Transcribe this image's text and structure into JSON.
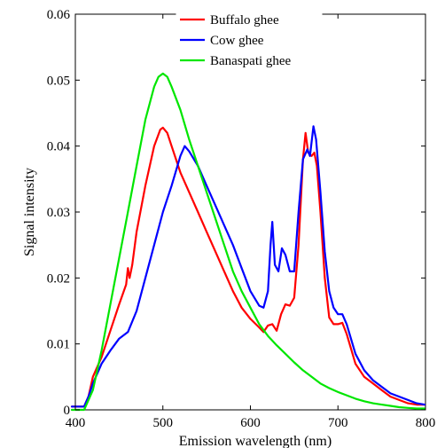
{
  "chart_data": {
    "type": "line",
    "title": "",
    "xlabel": "Emission wavelength (nm)",
    "ylabel": "Signal intensity",
    "xlim": [
      400,
      800
    ],
    "ylim": [
      0,
      0.06
    ],
    "x_ticks": [
      400,
      500,
      600,
      700,
      800
    ],
    "x_tick_labels": [
      "400",
      "500",
      "600",
      "700",
      "800"
    ],
    "y_ticks": [
      0,
      0.01,
      0.02,
      0.03,
      0.04,
      0.05,
      0.06
    ],
    "y_tick_labels": [
      "0",
      "0.01",
      "0.02",
      "0.03",
      "0.04",
      "0.05",
      "0.06"
    ],
    "grid": false,
    "legend_position": "top-right",
    "series": [
      {
        "name": "Buffalo ghee",
        "color": "#ff0000",
        "points": [
          [
            396,
            0.0005
          ],
          [
            410,
            0.0005
          ],
          [
            415,
            0.002
          ],
          [
            420,
            0.005
          ],
          [
            430,
            0.008
          ],
          [
            440,
            0.012
          ],
          [
            450,
            0.016
          ],
          [
            458,
            0.019
          ],
          [
            460,
            0.0215
          ],
          [
            462,
            0.02
          ],
          [
            465,
            0.022
          ],
          [
            470,
            0.027
          ],
          [
            480,
            0.034
          ],
          [
            490,
            0.04
          ],
          [
            497,
            0.0425
          ],
          [
            500,
            0.0428
          ],
          [
            505,
            0.042
          ],
          [
            510,
            0.04
          ],
          [
            520,
            0.036
          ],
          [
            530,
            0.033
          ],
          [
            540,
            0.03
          ],
          [
            550,
            0.027
          ],
          [
            560,
            0.024
          ],
          [
            570,
            0.021
          ],
          [
            580,
            0.018
          ],
          [
            590,
            0.0155
          ],
          [
            600,
            0.0138
          ],
          [
            610,
            0.0125
          ],
          [
            615,
            0.0118
          ],
          [
            620,
            0.0128
          ],
          [
            625,
            0.013
          ],
          [
            630,
            0.012
          ],
          [
            635,
            0.0145
          ],
          [
            640,
            0.016
          ],
          [
            645,
            0.0158
          ],
          [
            650,
            0.017
          ],
          [
            655,
            0.025
          ],
          [
            660,
            0.038
          ],
          [
            663,
            0.042
          ],
          [
            666,
            0.039
          ],
          [
            670,
            0.0385
          ],
          [
            673,
            0.039
          ],
          [
            676,
            0.037
          ],
          [
            680,
            0.03
          ],
          [
            685,
            0.02
          ],
          [
            690,
            0.014
          ],
          [
            695,
            0.013
          ],
          [
            700,
            0.013
          ],
          [
            705,
            0.0132
          ],
          [
            710,
            0.0115
          ],
          [
            720,
            0.007
          ],
          [
            730,
            0.005
          ],
          [
            740,
            0.004
          ],
          [
            750,
            0.003
          ],
          [
            760,
            0.002
          ],
          [
            770,
            0.0015
          ],
          [
            780,
            0.001
          ],
          [
            790,
            0.0008
          ],
          [
            799,
            0.0008
          ]
        ]
      },
      {
        "name": "Cow ghee",
        "color": "#0000ff",
        "points": [
          [
            396,
            0.0005
          ],
          [
            410,
            0.0005
          ],
          [
            415,
            0.002
          ],
          [
            420,
            0.004
          ],
          [
            430,
            0.007
          ],
          [
            440,
            0.009
          ],
          [
            450,
            0.0108
          ],
          [
            460,
            0.0118
          ],
          [
            470,
            0.015
          ],
          [
            480,
            0.02
          ],
          [
            490,
            0.025
          ],
          [
            500,
            0.03
          ],
          [
            510,
            0.034
          ],
          [
            520,
            0.0385
          ],
          [
            525,
            0.04
          ],
          [
            530,
            0.0392
          ],
          [
            540,
            0.037
          ],
          [
            550,
            0.034
          ],
          [
            560,
            0.031
          ],
          [
            570,
            0.028
          ],
          [
            580,
            0.025
          ],
          [
            590,
            0.0215
          ],
          [
            600,
            0.018
          ],
          [
            610,
            0.0158
          ],
          [
            615,
            0.0155
          ],
          [
            620,
            0.018
          ],
          [
            623,
            0.025
          ],
          [
            625,
            0.0285
          ],
          [
            628,
            0.022
          ],
          [
            632,
            0.021
          ],
          [
            636,
            0.0245
          ],
          [
            640,
            0.0235
          ],
          [
            645,
            0.021
          ],
          [
            650,
            0.021
          ],
          [
            655,
            0.03
          ],
          [
            660,
            0.038
          ],
          [
            665,
            0.0395
          ],
          [
            668,
            0.0385
          ],
          [
            672,
            0.043
          ],
          [
            675,
            0.041
          ],
          [
            680,
            0.033
          ],
          [
            685,
            0.024
          ],
          [
            690,
            0.018
          ],
          [
            695,
            0.0155
          ],
          [
            700,
            0.0145
          ],
          [
            705,
            0.0145
          ],
          [
            710,
            0.013
          ],
          [
            720,
            0.0085
          ],
          [
            730,
            0.006
          ],
          [
            740,
            0.0045
          ],
          [
            750,
            0.0035
          ],
          [
            760,
            0.0025
          ],
          [
            770,
            0.002
          ],
          [
            780,
            0.0015
          ],
          [
            790,
            0.001
          ],
          [
            799,
            0.0008
          ]
        ]
      },
      {
        "name": "Banaspati ghee",
        "color": "#00e600",
        "points": [
          [
            396,
            0.0
          ],
          [
            410,
            0.0
          ],
          [
            420,
            0.003
          ],
          [
            430,
            0.009
          ],
          [
            440,
            0.016
          ],
          [
            450,
            0.023
          ],
          [
            460,
            0.03
          ],
          [
            470,
            0.037
          ],
          [
            480,
            0.044
          ],
          [
            490,
            0.049
          ],
          [
            495,
            0.0505
          ],
          [
            500,
            0.051
          ],
          [
            505,
            0.0505
          ],
          [
            510,
            0.049
          ],
          [
            520,
            0.0455
          ],
          [
            530,
            0.041
          ],
          [
            540,
            0.037
          ],
          [
            550,
            0.033
          ],
          [
            560,
            0.029
          ],
          [
            570,
            0.025
          ],
          [
            580,
            0.021
          ],
          [
            590,
            0.018
          ],
          [
            600,
            0.0155
          ],
          [
            610,
            0.013
          ],
          [
            620,
            0.0112
          ],
          [
            630,
            0.0098
          ],
          [
            640,
            0.0085
          ],
          [
            650,
            0.0072
          ],
          [
            660,
            0.006
          ],
          [
            670,
            0.005
          ],
          [
            680,
            0.004
          ],
          [
            690,
            0.0033
          ],
          [
            700,
            0.0027
          ],
          [
            710,
            0.0022
          ],
          [
            720,
            0.0017
          ],
          [
            730,
            0.0013
          ],
          [
            740,
            0.001
          ],
          [
            750,
            0.0008
          ],
          [
            760,
            0.0006
          ],
          [
            770,
            0.0004
          ],
          [
            780,
            0.0003
          ],
          [
            790,
            0.0002
          ],
          [
            799,
            0.0002
          ]
        ]
      }
    ]
  }
}
